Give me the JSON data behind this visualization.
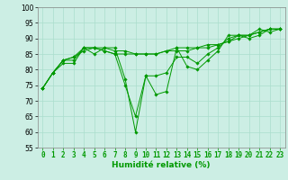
{
  "xlabel": "Humidité relative (%)",
  "bg_color": "#cceee4",
  "grid_color": "#aaddcc",
  "line_color": "#009900",
  "ylim": [
    55,
    100
  ],
  "xlim": [
    -0.5,
    23.5
  ],
  "yticks": [
    55,
    60,
    65,
    70,
    75,
    80,
    85,
    90,
    95,
    100
  ],
  "xticks": [
    0,
    1,
    2,
    3,
    4,
    5,
    6,
    7,
    8,
    9,
    10,
    11,
    12,
    13,
    14,
    15,
    16,
    17,
    18,
    19,
    20,
    21,
    22,
    23
  ],
  "series": [
    [
      74,
      79,
      82,
      82,
      87,
      85,
      87,
      87,
      77,
      60,
      78,
      72,
      73,
      87,
      81,
      80,
      83,
      86,
      91,
      91,
      91,
      93,
      92,
      93
    ],
    [
      74,
      79,
      83,
      84,
      86,
      87,
      86,
      85,
      85,
      85,
      85,
      85,
      86,
      86,
      86,
      87,
      87,
      88,
      89,
      90,
      91,
      92,
      93,
      93
    ],
    [
      74,
      79,
      83,
      83,
      87,
      87,
      86,
      85,
      75,
      65,
      78,
      78,
      79,
      84,
      84,
      82,
      85,
      87,
      90,
      91,
      90,
      91,
      93,
      93
    ],
    [
      74,
      79,
      83,
      84,
      87,
      87,
      87,
      86,
      86,
      85,
      85,
      85,
      86,
      87,
      87,
      87,
      88,
      88,
      89,
      91,
      91,
      92,
      93,
      93
    ]
  ],
  "tick_fontsize": 5.5,
  "xlabel_fontsize": 6.5
}
